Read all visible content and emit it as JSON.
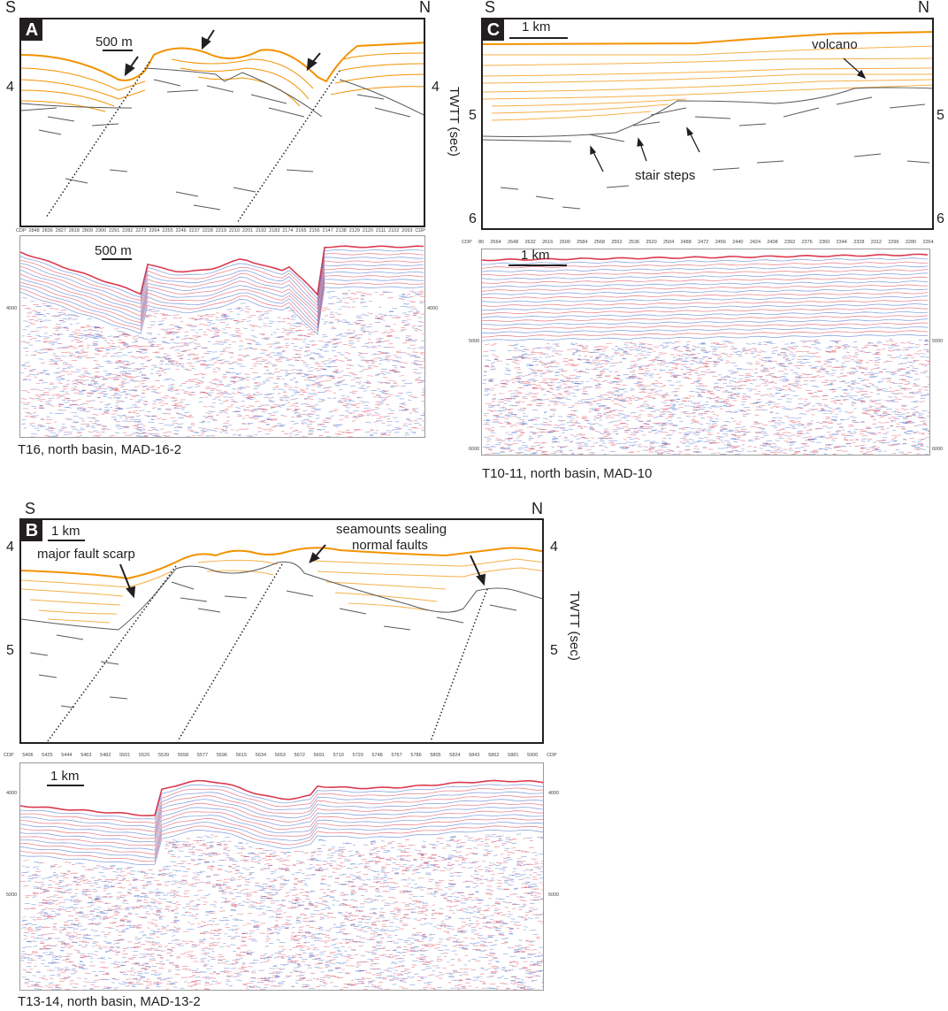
{
  "panels": {
    "A": {
      "letter": "A",
      "dir_left": "S",
      "dir_right": "N",
      "scale_top": "500 m",
      "scale_bottom": "500 m",
      "tick_left": "4",
      "tick_right": "4",
      "axis_title": "TWTT (sec)",
      "cdp_label": "CDP",
      "cdp_values": [
        "2848",
        "2836",
        "2827",
        "2818",
        "2809",
        "2300",
        "2291",
        "2282",
        "2273",
        "2264",
        "2255",
        "2246",
        "2237",
        "2228",
        "2219",
        "2210",
        "2201",
        "2192",
        "2183",
        "2174",
        "2165",
        "2156",
        "2147",
        "2138",
        "2129",
        "2120",
        "2111",
        "2102",
        "2093",
        "CDP"
      ],
      "small_tick_left": "4000",
      "small_tick_right": "4000",
      "caption": "T16, north basin, MAD-16-2"
    },
    "B": {
      "letter": "B",
      "dir_left": "S",
      "dir_right": "N",
      "scale_top": "1 km",
      "scale_bottom": "1 km",
      "ticks_left": [
        "4",
        "5"
      ],
      "ticks_right": [
        "4",
        "5"
      ],
      "axis_title": "TWTT (sec)",
      "ann_fault": "major fault scarp",
      "ann_seamount_1": "seamounts sealing",
      "ann_seamount_2": "normal faults",
      "cdp_label": "CDP",
      "cdp_values": [
        "5406",
        "5425",
        "5444",
        "5463",
        "5482",
        "5501",
        "5520",
        "5539",
        "5558",
        "5577",
        "5596",
        "5615",
        "5634",
        "5653",
        "5672",
        "5691",
        "5710",
        "5729",
        "5748",
        "5767",
        "5786",
        "5805",
        "5824",
        "5843",
        "5862",
        "5881",
        "5900"
      ],
      "cdp_label_right": "CDP",
      "small_ticks_left": [
        "4000",
        "5000"
      ],
      "small_ticks_right": [
        "4000",
        "5000"
      ],
      "caption": "T13-14, north basin, MAD-13-2"
    },
    "C": {
      "letter": "C",
      "dir_left": "S",
      "dir_right": "N",
      "scale_top": "1 km",
      "scale_bottom": "1 km",
      "ticks_left": [
        "5",
        "6"
      ],
      "ticks_right": [
        "5",
        "6"
      ],
      "ann_volcano": "volcano",
      "ann_stair": "stair steps",
      "cdp_label": "CDP",
      "cdp_values": [
        "80",
        "2664",
        "2648",
        "2632",
        "2616",
        "2600",
        "2584",
        "2568",
        "2552",
        "2536",
        "2520",
        "2504",
        "2488",
        "2472",
        "2456",
        "2440",
        "2424",
        "2408",
        "2392",
        "2376",
        "2360",
        "2344",
        "2328",
        "2312",
        "2296",
        "2280",
        "2264"
      ],
      "small_ticks_left": [
        "5000",
        "6000"
      ],
      "small_ticks_right": [
        "5000",
        "6000"
      ],
      "caption": "T10-11, north basin, MAD-10"
    }
  },
  "colors": {
    "horizon_orange": "#f39200",
    "horizon_light": "#f7b04a",
    "basement_gray": "#58595b",
    "seis_red": "#d7263d",
    "seis_blue": "#2b59c3"
  }
}
